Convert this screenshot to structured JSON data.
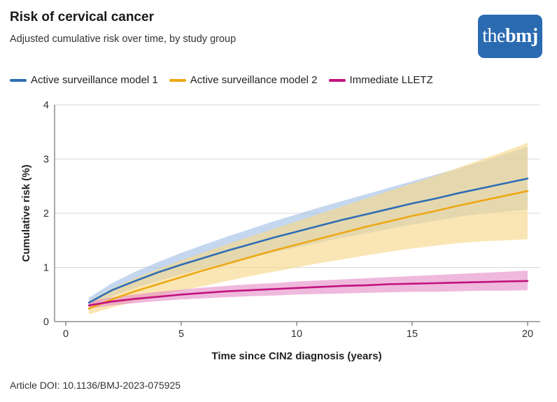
{
  "header": {
    "title": "Risk of cervical cancer",
    "subtitle": "Adjusted cumulative risk over time, by study group"
  },
  "logo": {
    "prefix": "the",
    "brand": "bmj"
  },
  "footer": {
    "doi": "Article DOI: 10.1136/BMJ-2023-075925"
  },
  "colors": {
    "series1": "#2f6db5",
    "series2": "#eda815",
    "series3": "#c2137d",
    "band1": "#9dbde3",
    "band2": "#f8d88c",
    "band3": "#e58ac7"
  },
  "chart_data": {
    "type": "line",
    "title": "Risk of cervical cancer",
    "subtitle": "Adjusted cumulative risk over time, by study group",
    "xlabel": "Time since CIN2 diagnosis (years)",
    "ylabel": "Cumulative risk (%)",
    "xlim": [
      0,
      20
    ],
    "ylim": [
      0,
      4
    ],
    "xticks": [
      0,
      5,
      10,
      15,
      20
    ],
    "yticks": [
      0,
      1,
      2,
      3,
      4
    ],
    "grid": true,
    "legend_position": "top-left",
    "x": [
      1,
      2,
      3,
      4,
      5,
      6,
      7,
      8,
      9,
      10,
      11,
      12,
      13,
      14,
      15,
      16,
      17,
      18,
      19,
      20
    ],
    "series": [
      {
        "name": "Active surveillance model 1",
        "values": [
          0.35,
          0.58,
          0.75,
          0.91,
          1.05,
          1.18,
          1.31,
          1.43,
          1.55,
          1.66,
          1.77,
          1.88,
          1.98,
          2.08,
          2.18,
          2.27,
          2.37,
          2.46,
          2.55,
          2.64
        ],
        "lower": [
          0.29,
          0.47,
          0.62,
          0.75,
          0.87,
          0.98,
          1.08,
          1.18,
          1.28,
          1.37,
          1.46,
          1.55,
          1.63,
          1.71,
          1.79,
          1.86,
          1.93,
          1.99,
          2.03,
          2.07
        ],
        "upper": [
          0.44,
          0.71,
          0.92,
          1.1,
          1.27,
          1.42,
          1.57,
          1.71,
          1.85,
          1.98,
          2.11,
          2.23,
          2.35,
          2.47,
          2.59,
          2.71,
          2.83,
          2.95,
          3.09,
          3.23
        ]
      },
      {
        "name": "Active surveillance model 2",
        "values": [
          0.24,
          0.41,
          0.56,
          0.69,
          0.82,
          0.95,
          1.07,
          1.19,
          1.31,
          1.42,
          1.53,
          1.64,
          1.75,
          1.85,
          1.95,
          2.04,
          2.14,
          2.23,
          2.32,
          2.41
        ],
        "lower": [
          0.13,
          0.26,
          0.37,
          0.47,
          0.57,
          0.66,
          0.75,
          0.84,
          0.92,
          1.0,
          1.08,
          1.15,
          1.22,
          1.29,
          1.35,
          1.4,
          1.45,
          1.48,
          1.5,
          1.52
        ],
        "upper": [
          0.38,
          0.61,
          0.8,
          0.97,
          1.13,
          1.28,
          1.43,
          1.57,
          1.71,
          1.85,
          1.99,
          2.13,
          2.27,
          2.41,
          2.55,
          2.69,
          2.84,
          2.99,
          3.14,
          3.3
        ]
      },
      {
        "name": "Immediate LLETZ",
        "values": [
          0.3,
          0.37,
          0.42,
          0.46,
          0.5,
          0.53,
          0.56,
          0.58,
          0.6,
          0.62,
          0.64,
          0.66,
          0.67,
          0.69,
          0.7,
          0.71,
          0.72,
          0.73,
          0.74,
          0.75
        ],
        "lower": [
          0.24,
          0.3,
          0.34,
          0.38,
          0.41,
          0.43,
          0.45,
          0.47,
          0.48,
          0.5,
          0.51,
          0.52,
          0.53,
          0.54,
          0.55,
          0.55,
          0.56,
          0.57,
          0.57,
          0.58
        ],
        "upper": [
          0.37,
          0.45,
          0.5,
          0.55,
          0.59,
          0.63,
          0.66,
          0.69,
          0.71,
          0.74,
          0.76,
          0.78,
          0.8,
          0.82,
          0.84,
          0.86,
          0.88,
          0.9,
          0.92,
          0.94
        ]
      }
    ]
  }
}
